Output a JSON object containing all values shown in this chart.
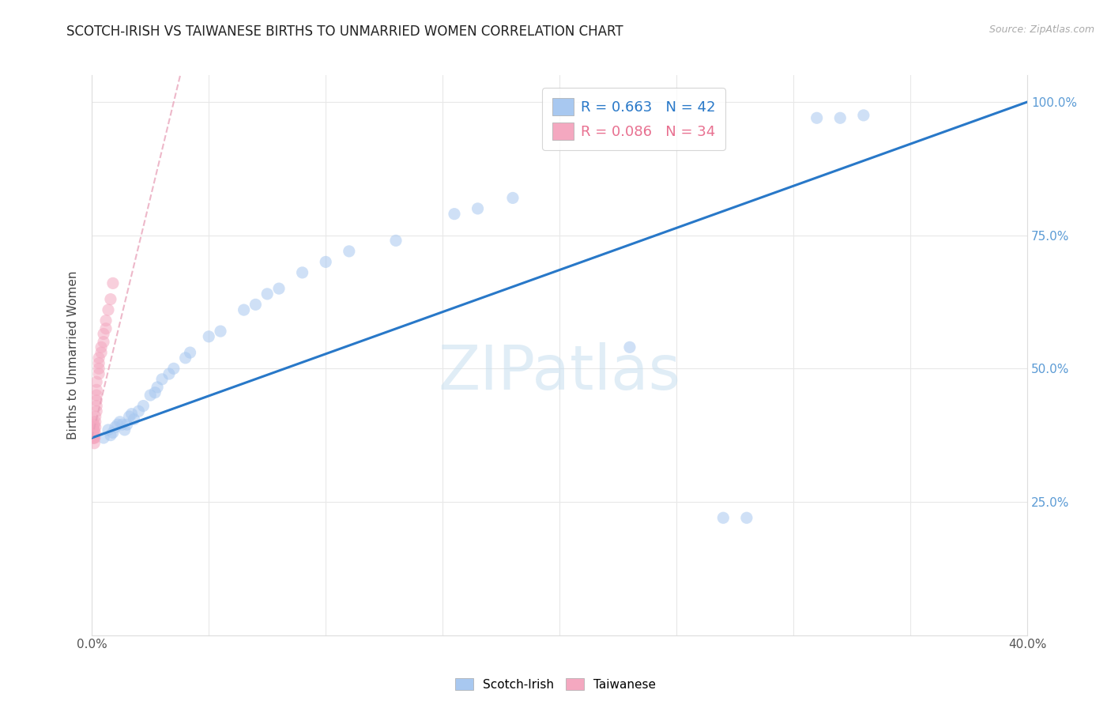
{
  "title": "SCOTCH-IRISH VS TAIWANESE BIRTHS TO UNMARRIED WOMEN CORRELATION CHART",
  "source": "Source: ZipAtlas.com",
  "ylabel": "Births to Unmarried Women",
  "xmin": 0.0,
  "xmax": 0.4,
  "ymin": 0.0,
  "ymax": 1.05,
  "xticks": [
    0.0,
    0.05,
    0.1,
    0.15,
    0.2,
    0.25,
    0.3,
    0.35,
    0.4
  ],
  "ytick_positions": [
    0.0,
    0.25,
    0.5,
    0.75,
    1.0
  ],
  "ytick_labels": [
    "",
    "25.0%",
    "50.0%",
    "75.0%",
    "100.0%"
  ],
  "xtick_labels": [
    "0.0%",
    "",
    "",
    "",
    "",
    "",
    "",
    "",
    "40.0%"
  ],
  "legend_blue_label": "R = 0.663   N = 42",
  "legend_pink_label": "R = 0.086   N = 34",
  "watermark": "ZIPatlas",
  "scotch_irish_x": [
    0.005,
    0.007,
    0.008,
    0.009,
    0.01,
    0.011,
    0.012,
    0.013,
    0.014,
    0.015,
    0.016,
    0.017,
    0.018,
    0.02,
    0.022,
    0.025,
    0.027,
    0.028,
    0.03,
    0.033,
    0.035,
    0.04,
    0.042,
    0.05,
    0.055,
    0.065,
    0.07,
    0.075,
    0.08,
    0.09,
    0.1,
    0.11,
    0.13,
    0.155,
    0.165,
    0.18,
    0.23,
    0.27,
    0.28,
    0.31,
    0.32,
    0.33
  ],
  "scotch_irish_y": [
    0.37,
    0.385,
    0.375,
    0.38,
    0.39,
    0.395,
    0.4,
    0.395,
    0.385,
    0.395,
    0.41,
    0.415,
    0.405,
    0.42,
    0.43,
    0.45,
    0.455,
    0.465,
    0.48,
    0.49,
    0.5,
    0.52,
    0.53,
    0.56,
    0.57,
    0.61,
    0.62,
    0.64,
    0.65,
    0.68,
    0.7,
    0.72,
    0.74,
    0.79,
    0.8,
    0.82,
    0.54,
    0.22,
    0.22,
    0.97,
    0.97,
    0.975
  ],
  "taiwanese_x": [
    0.0005,
    0.0005,
    0.0005,
    0.0007,
    0.0007,
    0.001,
    0.001,
    0.001,
    0.001,
    0.001,
    0.0012,
    0.0013,
    0.0015,
    0.0015,
    0.0015,
    0.002,
    0.002,
    0.002,
    0.002,
    0.002,
    0.002,
    0.003,
    0.003,
    0.003,
    0.003,
    0.004,
    0.004,
    0.005,
    0.005,
    0.006,
    0.006,
    0.007,
    0.008,
    0.009
  ],
  "taiwanese_y": [
    0.37,
    0.39,
    0.4,
    0.37,
    0.385,
    0.375,
    0.385,
    0.395,
    0.37,
    0.36,
    0.37,
    0.38,
    0.39,
    0.4,
    0.41,
    0.42,
    0.43,
    0.44,
    0.45,
    0.46,
    0.475,
    0.49,
    0.5,
    0.51,
    0.52,
    0.53,
    0.54,
    0.55,
    0.565,
    0.575,
    0.59,
    0.61,
    0.63,
    0.66
  ],
  "blue_color": "#a8c8f0",
  "pink_color": "#f4a8c0",
  "trend_blue_color": "#2878c8",
  "trend_pink_color": "#e8a0b8",
  "grid_color": "#e8e8e8",
  "title_color": "#222222",
  "right_axis_color": "#5b9bd5",
  "marker_size": 120,
  "marker_alpha": 0.55
}
